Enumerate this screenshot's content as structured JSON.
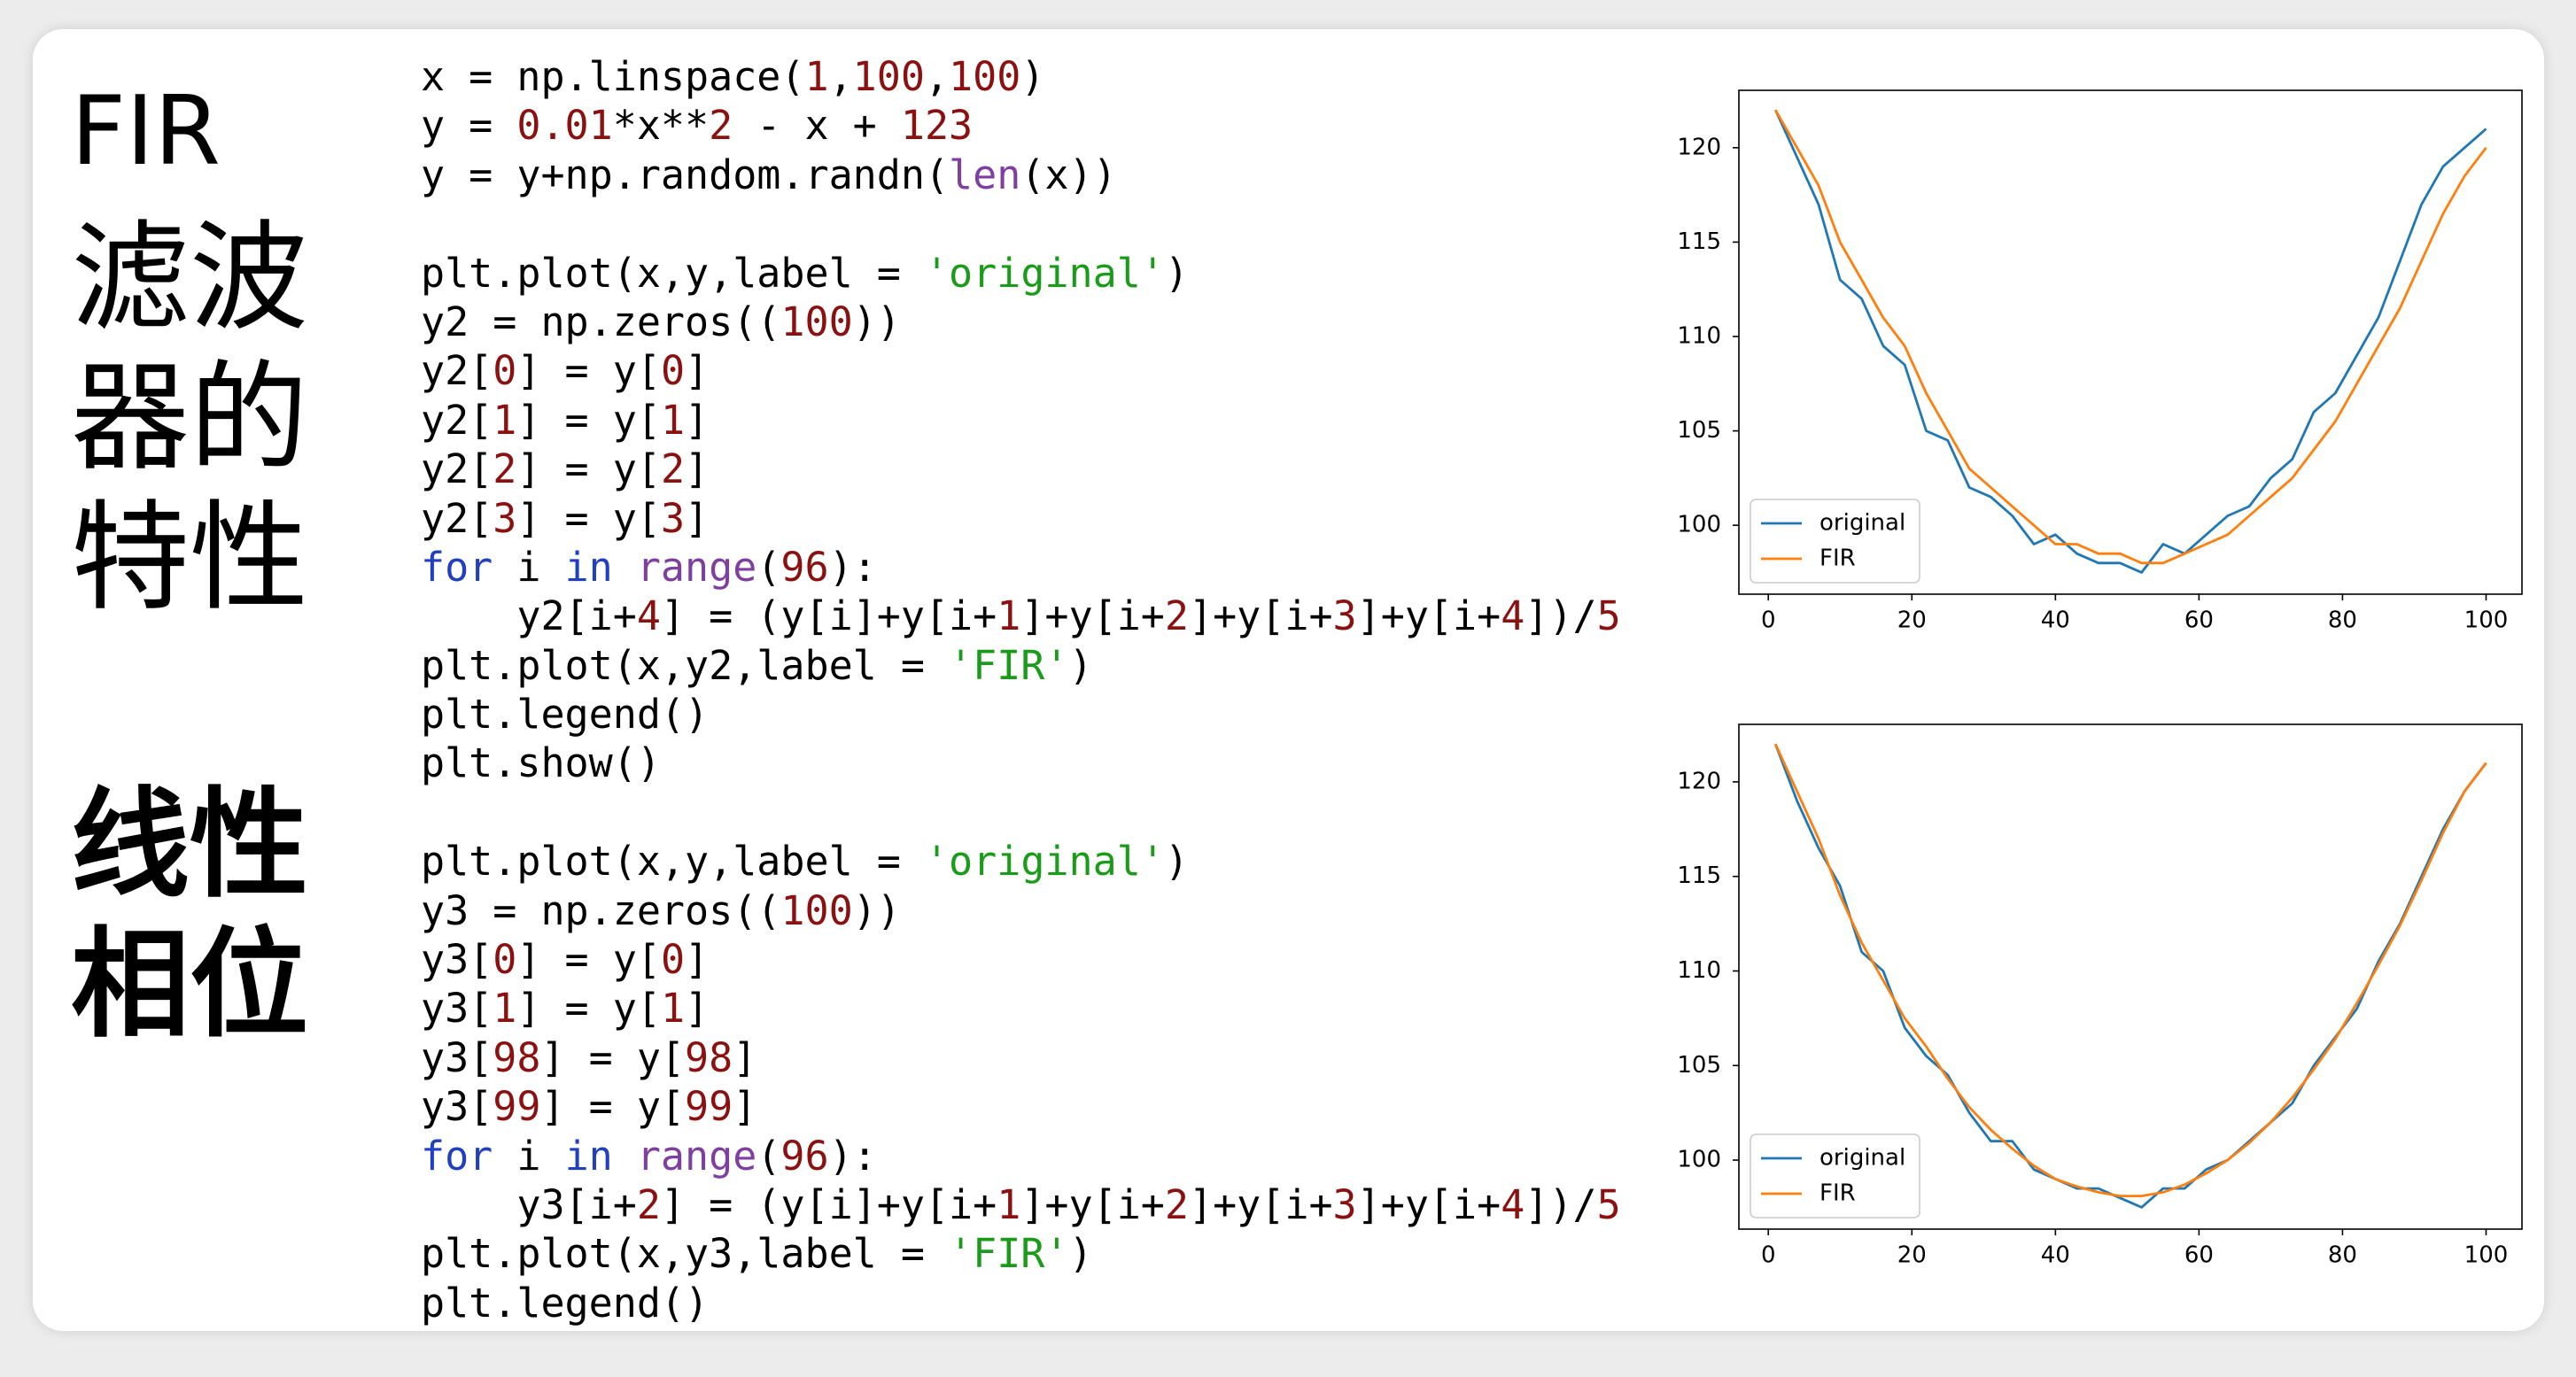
{
  "heading": {
    "title": "FIR",
    "lines": [
      "滤波",
      "器的",
      "特性"
    ]
  },
  "subheading": {
    "lines": [
      "线性",
      "相位"
    ]
  },
  "code_blocks": [
    [
      [
        {
          "text": "x = np.linspace(",
          "color": "#000000"
        },
        {
          "text": "1",
          "color": "#8b1111"
        },
        {
          "text": ",",
          "color": "#000000"
        },
        {
          "text": "100",
          "color": "#8b1111"
        },
        {
          "text": ",",
          "color": "#000000"
        },
        {
          "text": "100",
          "color": "#8b1111"
        },
        {
          "text": ")",
          "color": "#000000"
        }
      ],
      [
        {
          "text": "y = ",
          "color": "#000000"
        },
        {
          "text": "0.01",
          "color": "#8b1111"
        },
        {
          "text": "*x**",
          "color": "#000000"
        },
        {
          "text": "2",
          "color": "#8b1111"
        },
        {
          "text": " - x + ",
          "color": "#000000"
        },
        {
          "text": "123",
          "color": "#8b1111"
        }
      ],
      [
        {
          "text": "y = y+np.random.randn(",
          "color": "#000000"
        },
        {
          "text": "len",
          "color": "#7f3fa0"
        },
        {
          "text": "(x))",
          "color": "#000000"
        }
      ]
    ],
    [
      [
        {
          "text": "plt.plot(x,y,label = ",
          "color": "#000000"
        },
        {
          "text": "'original'",
          "color": "#1a9c1a"
        },
        {
          "text": ")",
          "color": "#000000"
        }
      ],
      [
        {
          "text": "y2 = np.zeros((",
          "color": "#000000"
        },
        {
          "text": "100",
          "color": "#8b1111"
        },
        {
          "text": "))",
          "color": "#000000"
        }
      ],
      [
        {
          "text": "y2[",
          "color": "#000000"
        },
        {
          "text": "0",
          "color": "#8b1111"
        },
        {
          "text": "] = y[",
          "color": "#000000"
        },
        {
          "text": "0",
          "color": "#8b1111"
        },
        {
          "text": "]",
          "color": "#000000"
        }
      ],
      [
        {
          "text": "y2[",
          "color": "#000000"
        },
        {
          "text": "1",
          "color": "#8b1111"
        },
        {
          "text": "] = y[",
          "color": "#000000"
        },
        {
          "text": "1",
          "color": "#8b1111"
        },
        {
          "text": "]",
          "color": "#000000"
        }
      ],
      [
        {
          "text": "y2[",
          "color": "#000000"
        },
        {
          "text": "2",
          "color": "#8b1111"
        },
        {
          "text": "] = y[",
          "color": "#000000"
        },
        {
          "text": "2",
          "color": "#8b1111"
        },
        {
          "text": "]",
          "color": "#000000"
        }
      ],
      [
        {
          "text": "y2[",
          "color": "#000000"
        },
        {
          "text": "3",
          "color": "#8b1111"
        },
        {
          "text": "] = y[",
          "color": "#000000"
        },
        {
          "text": "3",
          "color": "#8b1111"
        },
        {
          "text": "]",
          "color": "#000000"
        }
      ],
      [
        {
          "text": "for",
          "color": "#2040c0"
        },
        {
          "text": " i ",
          "color": "#000000"
        },
        {
          "text": "in",
          "color": "#2040c0"
        },
        {
          "text": " ",
          "color": "#000000"
        },
        {
          "text": "range",
          "color": "#7f3fa0"
        },
        {
          "text": "(",
          "color": "#000000"
        },
        {
          "text": "96",
          "color": "#8b1111"
        },
        {
          "text": "):",
          "color": "#000000"
        }
      ],
      [
        {
          "text": "    y2[i+",
          "color": "#000000"
        },
        {
          "text": "4",
          "color": "#8b1111"
        },
        {
          "text": "] = (y[i]+y[i+",
          "color": "#000000"
        },
        {
          "text": "1",
          "color": "#8b1111"
        },
        {
          "text": "]+y[i+",
          "color": "#000000"
        },
        {
          "text": "2",
          "color": "#8b1111"
        },
        {
          "text": "]+y[i+",
          "color": "#000000"
        },
        {
          "text": "3",
          "color": "#8b1111"
        },
        {
          "text": "]+y[i+",
          "color": "#000000"
        },
        {
          "text": "4",
          "color": "#8b1111"
        },
        {
          "text": "])/",
          "color": "#000000"
        },
        {
          "text": "5",
          "color": "#8b1111"
        }
      ],
      [
        {
          "text": "plt.plot(x,y2,label = ",
          "color": "#000000"
        },
        {
          "text": "'FIR'",
          "color": "#1a9c1a"
        },
        {
          "text": ")",
          "color": "#000000"
        }
      ],
      [
        {
          "text": "plt.legend()",
          "color": "#000000"
        }
      ],
      [
        {
          "text": "plt.show()",
          "color": "#000000"
        }
      ]
    ],
    [
      [
        {
          "text": "plt.plot(x,y,label = ",
          "color": "#000000"
        },
        {
          "text": "'original'",
          "color": "#1a9c1a"
        },
        {
          "text": ")",
          "color": "#000000"
        }
      ],
      [
        {
          "text": "y3 = np.zeros((",
          "color": "#000000"
        },
        {
          "text": "100",
          "color": "#8b1111"
        },
        {
          "text": "))",
          "color": "#000000"
        }
      ],
      [
        {
          "text": "y3[",
          "color": "#000000"
        },
        {
          "text": "0",
          "color": "#8b1111"
        },
        {
          "text": "] = y[",
          "color": "#000000"
        },
        {
          "text": "0",
          "color": "#8b1111"
        },
        {
          "text": "]",
          "color": "#000000"
        }
      ],
      [
        {
          "text": "y3[",
          "color": "#000000"
        },
        {
          "text": "1",
          "color": "#8b1111"
        },
        {
          "text": "] = y[",
          "color": "#000000"
        },
        {
          "text": "1",
          "color": "#8b1111"
        },
        {
          "text": "]",
          "color": "#000000"
        }
      ],
      [
        {
          "text": "y3[",
          "color": "#000000"
        },
        {
          "text": "98",
          "color": "#8b1111"
        },
        {
          "text": "] = y[",
          "color": "#000000"
        },
        {
          "text": "98",
          "color": "#8b1111"
        },
        {
          "text": "]",
          "color": "#000000"
        }
      ],
      [
        {
          "text": "y3[",
          "color": "#000000"
        },
        {
          "text": "99",
          "color": "#8b1111"
        },
        {
          "text": "] = y[",
          "color": "#000000"
        },
        {
          "text": "99",
          "color": "#8b1111"
        },
        {
          "text": "]",
          "color": "#000000"
        }
      ],
      [
        {
          "text": "for",
          "color": "#2040c0"
        },
        {
          "text": " i ",
          "color": "#000000"
        },
        {
          "text": "in",
          "color": "#2040c0"
        },
        {
          "text": " ",
          "color": "#000000"
        },
        {
          "text": "range",
          "color": "#7f3fa0"
        },
        {
          "text": "(",
          "color": "#000000"
        },
        {
          "text": "96",
          "color": "#8b1111"
        },
        {
          "text": "):",
          "color": "#000000"
        }
      ],
      [
        {
          "text": "    y3[i+",
          "color": "#000000"
        },
        {
          "text": "2",
          "color": "#8b1111"
        },
        {
          "text": "] = (y[i]+y[i+",
          "color": "#000000"
        },
        {
          "text": "1",
          "color": "#8b1111"
        },
        {
          "text": "]+y[i+",
          "color": "#000000"
        },
        {
          "text": "2",
          "color": "#8b1111"
        },
        {
          "text": "]+y[i+",
          "color": "#000000"
        },
        {
          "text": "3",
          "color": "#8b1111"
        },
        {
          "text": "]+y[i+",
          "color": "#000000"
        },
        {
          "text": "4",
          "color": "#8b1111"
        },
        {
          "text": "])/",
          "color": "#000000"
        },
        {
          "text": "5",
          "color": "#8b1111"
        }
      ],
      [
        {
          "text": "plt.plot(x,y3,label = ",
          "color": "#000000"
        },
        {
          "text": "'FIR'",
          "color": "#1a9c1a"
        },
        {
          "text": ")",
          "color": "#000000"
        }
      ],
      [
        {
          "text": "plt.legend()",
          "color": "#000000"
        }
      ]
    ]
  ],
  "chart_data": [
    {
      "type": "line",
      "legend": "lower left",
      "xlim": [
        -4.1,
        105
      ],
      "ylim": [
        96.35,
        123.04
      ],
      "xticks": [
        0,
        20,
        40,
        60,
        80,
        100
      ],
      "yticks": [
        100,
        105,
        110,
        115,
        120
      ],
      "x": [
        1,
        4,
        7,
        10,
        13,
        16,
        19,
        22,
        25,
        28,
        31,
        34,
        37,
        40,
        43,
        46,
        49,
        52,
        55,
        58,
        61,
        64,
        67,
        70,
        73,
        76,
        79,
        82,
        85,
        88,
        91,
        94,
        97,
        100
      ],
      "series": [
        {
          "name": "original",
          "color": "#1f77b4",
          "values": [
            122,
            119.5,
            117,
            113,
            112,
            109.5,
            108.5,
            105,
            104.5,
            102,
            101.5,
            100.5,
            99,
            99.5,
            98.5,
            98,
            98,
            97.5,
            99,
            98.5,
            99.5,
            100.5,
            101,
            102.5,
            103.5,
            106,
            107,
            109,
            111,
            114,
            117,
            119,
            120,
            121
          ]
        },
        {
          "name": "FIR",
          "color": "#ff7f0e",
          "values": [
            122,
            120,
            118,
            115,
            113,
            111,
            109.5,
            107,
            105,
            103,
            102,
            101,
            100,
            99,
            99,
            98.5,
            98.5,
            98,
            98,
            98.5,
            99,
            99.5,
            100.5,
            101.5,
            102.5,
            104,
            105.5,
            107.5,
            109.5,
            111.5,
            114,
            116.5,
            118.5,
            120
          ]
        }
      ]
    },
    {
      "type": "line",
      "legend": "lower left",
      "xlim": [
        -4.1,
        105
      ],
      "ylim": [
        96.35,
        123.04
      ],
      "xticks": [
        0,
        20,
        40,
        60,
        80,
        100
      ],
      "yticks": [
        100,
        105,
        110,
        115,
        120
      ],
      "x": [
        1,
        4,
        7,
        10,
        13,
        16,
        19,
        22,
        25,
        28,
        31,
        34,
        37,
        40,
        43,
        46,
        49,
        52,
        55,
        58,
        61,
        64,
        67,
        70,
        73,
        76,
        79,
        82,
        85,
        88,
        91,
        94,
        97,
        100
      ],
      "series": [
        {
          "name": "original",
          "color": "#1f77b4",
          "values": [
            122,
            119,
            116.5,
            114.5,
            111,
            110,
            107,
            105.5,
            104.5,
            102.5,
            101,
            101,
            99.5,
            99,
            98.5,
            98.5,
            98,
            97.5,
            98.5,
            98.5,
            99.5,
            100,
            101,
            102,
            103,
            105,
            106.5,
            108,
            110.5,
            112.5,
            115,
            117.5,
            119.5,
            121
          ]
        },
        {
          "name": "FIR",
          "color": "#ff7f0e",
          "values": [
            122,
            119.5,
            117,
            114,
            111.5,
            109.5,
            107.5,
            106,
            104.3,
            102.8,
            101.6,
            100.6,
            99.7,
            99,
            98.6,
            98.3,
            98.1,
            98.1,
            98.3,
            98.7,
            99.3,
            100,
            100.9,
            102,
            103.3,
            104.8,
            106.4,
            108.3,
            110.3,
            112.4,
            114.8,
            117.3,
            119.5,
            121
          ]
        }
      ]
    }
  ]
}
